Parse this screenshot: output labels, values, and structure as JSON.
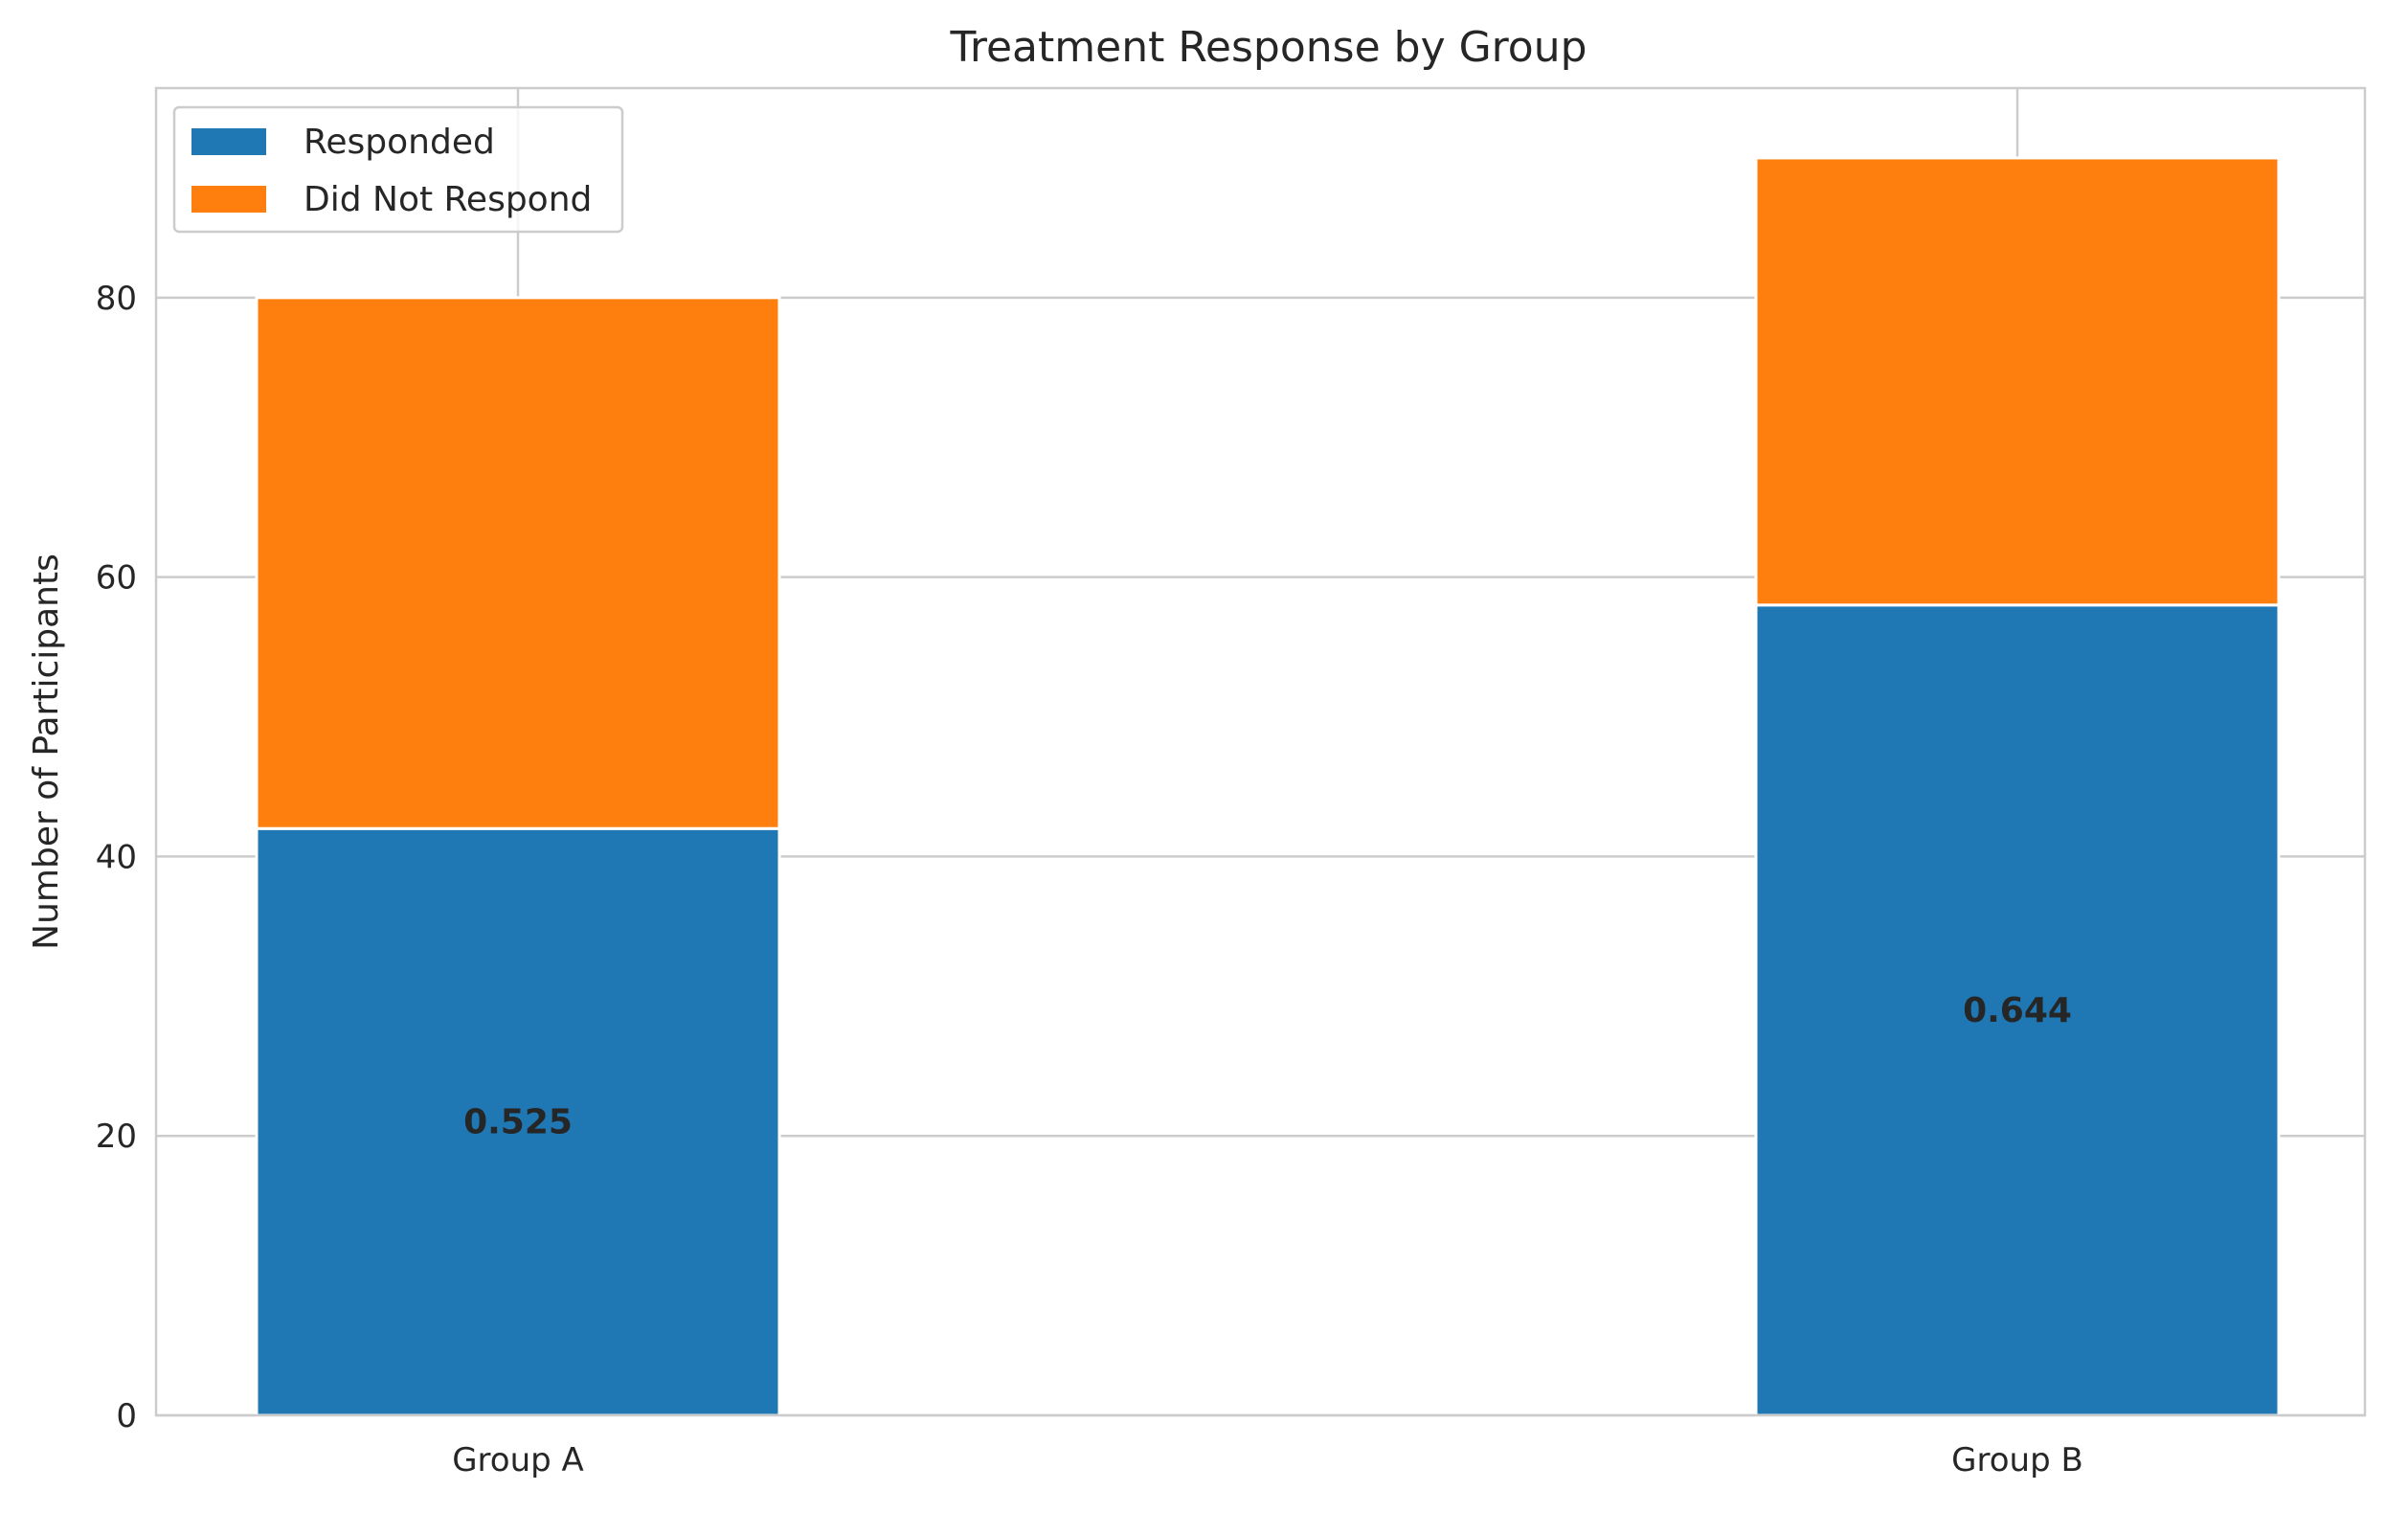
{
  "chart_data": {
    "type": "bar",
    "stacked": true,
    "title": "Treatment Response by Group",
    "xlabel": "",
    "ylabel": "Number of Participants",
    "categories": [
      "Group A",
      "Group B"
    ],
    "series": [
      {
        "name": "Responded",
        "values": [
          42,
          58
        ],
        "color": "#1f77b4"
      },
      {
        "name": "Did Not Respond",
        "values": [
          38,
          32
        ],
        "color": "#ff7f0e"
      }
    ],
    "bar_labels": [
      "0.525",
      "0.644"
    ],
    "ylim": [
      0,
      95
    ],
    "yticks": [
      "0",
      "20",
      "40",
      "60",
      "80"
    ],
    "grid": true,
    "legend_position": "upper-left"
  }
}
